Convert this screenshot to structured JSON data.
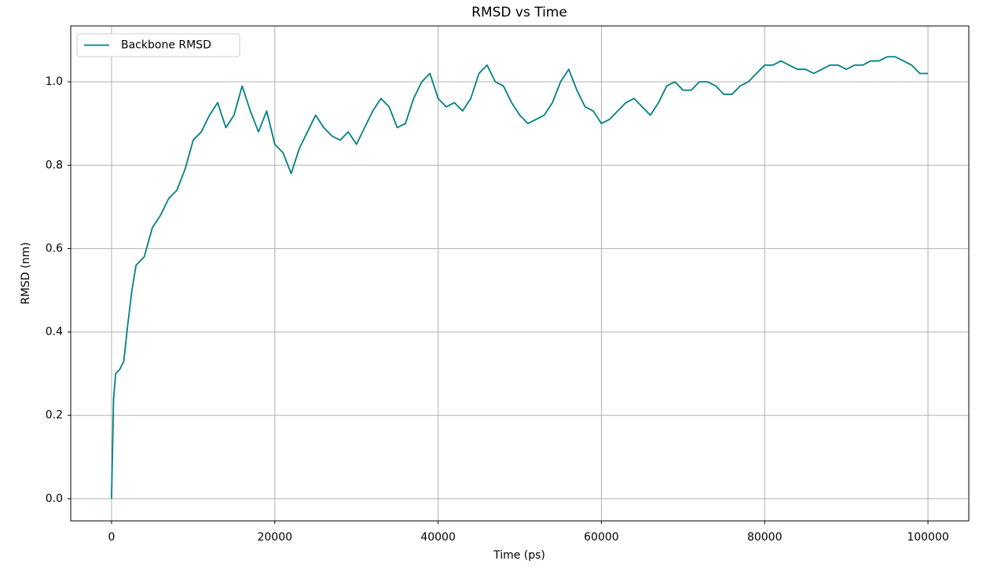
{
  "chart_data": {
    "type": "line",
    "title": "RMSD vs Time",
    "x_label": "Time (ps)",
    "y_label": "RMSD (nm)",
    "x": [
      0,
      250,
      500,
      1000,
      1500,
      2000,
      2500,
      3000,
      4000,
      5000,
      6000,
      7000,
      8000,
      9000,
      10000,
      11000,
      12000,
      13000,
      14000,
      15000,
      16000,
      17000,
      18000,
      19000,
      20000,
      21000,
      22000,
      23000,
      24000,
      25000,
      26000,
      27000,
      28000,
      29000,
      30000,
      31000,
      32000,
      33000,
      34000,
      35000,
      36000,
      37000,
      38000,
      39000,
      40000,
      41000,
      42000,
      43000,
      44000,
      45000,
      46000,
      47000,
      48000,
      49000,
      50000,
      51000,
      52000,
      53000,
      54000,
      55000,
      56000,
      57000,
      58000,
      59000,
      60000,
      61000,
      62000,
      63000,
      64000,
      65000,
      66000,
      67000,
      68000,
      69000,
      70000,
      71000,
      72000,
      73000,
      74000,
      75000,
      76000,
      77000,
      78000,
      79000,
      80000,
      81000,
      82000,
      83000,
      84000,
      85000,
      86000,
      87000,
      88000,
      89000,
      90000,
      91000,
      92000,
      93000,
      94000,
      95000,
      96000,
      97000,
      98000,
      99000,
      100000
    ],
    "series": [
      {
        "name": "Backbone RMSD",
        "color": "#008080",
        "values": [
          0.0,
          0.24,
          0.3,
          0.31,
          0.33,
          0.42,
          0.5,
          0.56,
          0.58,
          0.65,
          0.68,
          0.72,
          0.74,
          0.79,
          0.86,
          0.88,
          0.92,
          0.95,
          0.89,
          0.92,
          0.99,
          0.93,
          0.88,
          0.93,
          0.85,
          0.83,
          0.78,
          0.84,
          0.88,
          0.92,
          0.89,
          0.87,
          0.86,
          0.88,
          0.85,
          0.89,
          0.93,
          0.96,
          0.94,
          0.89,
          0.9,
          0.96,
          1.0,
          1.02,
          0.96,
          0.94,
          0.95,
          0.93,
          0.96,
          1.02,
          1.04,
          1.0,
          0.99,
          0.95,
          0.92,
          0.9,
          0.91,
          0.92,
          0.95,
          1.0,
          1.03,
          0.98,
          0.94,
          0.93,
          0.9,
          0.91,
          0.93,
          0.95,
          0.96,
          0.94,
          0.92,
          0.95,
          0.99,
          1.0,
          0.98,
          0.98,
          1.0,
          1.0,
          0.99,
          0.97,
          0.97,
          0.99,
          1.0,
          1.02,
          1.04,
          1.04,
          1.05,
          1.04,
          1.03,
          1.03,
          1.02,
          1.03,
          1.04,
          1.04,
          1.03,
          1.04,
          1.04,
          1.05,
          1.05,
          1.06,
          1.06,
          1.05,
          1.04,
          1.02,
          1.02
        ]
      }
    ],
    "xlim": [
      -5000,
      105000
    ],
    "xticks": [
      0,
      20000,
      40000,
      60000,
      80000,
      100000
    ],
    "ylim": [
      -0.053,
      1.134
    ],
    "yticks": [
      {
        "value": 0,
        "label": "0.0"
      },
      0.2,
      0.4,
      0.6,
      0.8,
      {
        "value": 1,
        "label": "1.0"
      }
    ],
    "grid": true,
    "legend": "upper left"
  }
}
